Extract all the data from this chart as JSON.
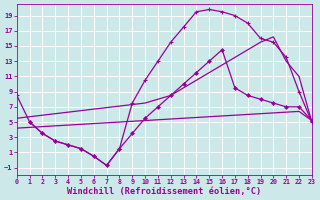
{
  "xlabel": "Windchill (Refroidissement éolien,°C)",
  "bg_color": "#cce8e8",
  "grid_color": "#ffffff",
  "line_color": "#990099",
  "xlim": [
    0,
    23
  ],
  "ylim": [
    -2,
    20.5
  ],
  "yticks": [
    -1,
    1,
    3,
    5,
    7,
    9,
    11,
    13,
    15,
    17,
    19
  ],
  "xticks": [
    0,
    1,
    2,
    3,
    4,
    5,
    6,
    7,
    8,
    9,
    10,
    11,
    12,
    13,
    14,
    15,
    16,
    17,
    18,
    19,
    20,
    21,
    22,
    23
  ],
  "curve_main_x": [
    0,
    1,
    2,
    3,
    4,
    5,
    6,
    7,
    8,
    9,
    10,
    11,
    12,
    13,
    14,
    15,
    16,
    17,
    18,
    19,
    20,
    21,
    22,
    23
  ],
  "curve_main_y": [
    8.5,
    5.0,
    3.5,
    2.5,
    2.0,
    1.5,
    0.5,
    -0.7,
    1.5,
    7.5,
    10.5,
    13.0,
    15.5,
    17.5,
    19.5,
    19.8,
    19.5,
    19.0,
    18.0,
    16.0,
    15.5,
    13.5,
    9.0,
    5.0
  ],
  "curve_rise_x": [
    0,
    1,
    2,
    3,
    4,
    5,
    6,
    7,
    8,
    9,
    10,
    11,
    12,
    13,
    14,
    15,
    16,
    17,
    18,
    19,
    20,
    21,
    22,
    23
  ],
  "curve_rise_y": [
    5.5,
    5.7,
    5.9,
    6.1,
    6.3,
    6.5,
    6.7,
    6.9,
    7.1,
    7.3,
    7.5,
    8.0,
    8.5,
    9.5,
    10.5,
    11.5,
    12.5,
    13.5,
    14.5,
    15.5,
    16.2,
    13.0,
    11.0,
    5.0
  ],
  "curve_flat_x": [
    0,
    1,
    2,
    3,
    4,
    5,
    6,
    7,
    8,
    9,
    10,
    11,
    12,
    13,
    14,
    15,
    16,
    17,
    18,
    19,
    20,
    21,
    22,
    23
  ],
  "curve_flat_y": [
    4.2,
    4.3,
    4.4,
    4.5,
    4.6,
    4.7,
    4.8,
    4.9,
    5.0,
    5.1,
    5.2,
    5.3,
    5.4,
    5.5,
    5.6,
    5.7,
    5.8,
    5.9,
    6.0,
    6.1,
    6.2,
    6.3,
    6.4,
    5.2
  ],
  "curve_lower_x": [
    1,
    2,
    3,
    4,
    5,
    6,
    7,
    8,
    9,
    10,
    11,
    12,
    13,
    14,
    15,
    16,
    17,
    18,
    19,
    20,
    21,
    22,
    23
  ],
  "curve_lower_y": [
    5.0,
    3.5,
    2.5,
    2.0,
    1.5,
    0.5,
    -0.7,
    1.5,
    3.5,
    5.5,
    7.0,
    8.5,
    10.0,
    11.5,
    13.0,
    14.5,
    9.5,
    8.5,
    8.0,
    7.5,
    7.0,
    7.0,
    5.2
  ]
}
